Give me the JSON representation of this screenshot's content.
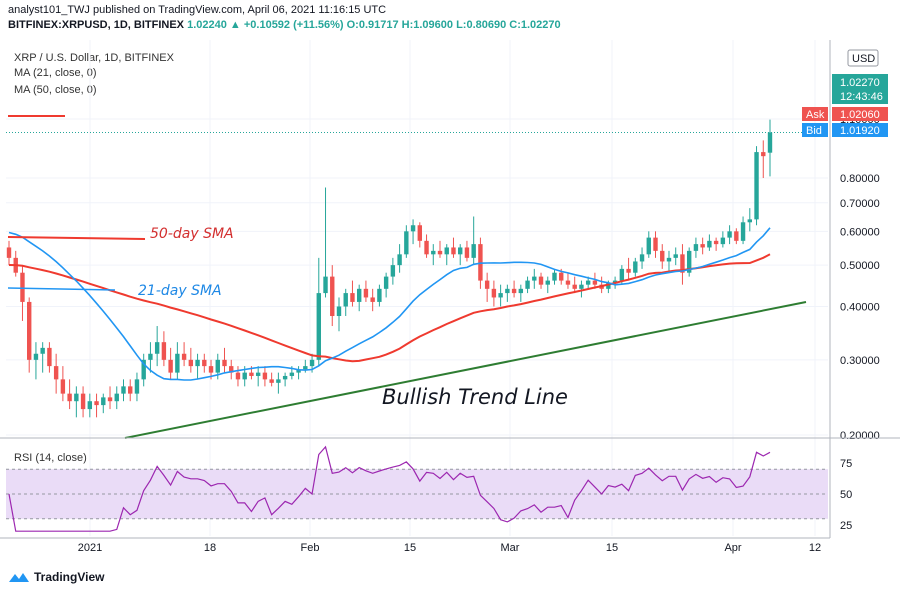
{
  "header": {
    "line1": "analyst101_TWJ published on TradingView.com, April 06, 2021 11:16:15 UTC",
    "symbol": "BITFINEX:XRPUSD, 1D, BITFINEX",
    "ohlc": "1.02240  ▲ +0.10592 (+11.56%) O:0.91717 H:1.09600 L:0.80690 C:1.02270"
  },
  "legend": {
    "title": "XRP / U.S. Dollar, 1D, BITFINEX",
    "ma21": "MA (21, close, 0)",
    "ma50": "MA (50, close, 0)",
    "rsi": "RSI (14, close)"
  },
  "price_tags": {
    "currency": "USD",
    "last": "1.02270",
    "countdown": "12:43:46",
    "ask_label": "Ask",
    "ask": "1.02060",
    "bid_label": "Bid",
    "bid": "1.01920"
  },
  "annotations": {
    "sma50": "50-day SMA",
    "sma21": "21-day SMA",
    "trend": "Bullish Trend Line"
  },
  "footer": {
    "brand": "TradingView"
  },
  "colors": {
    "up": "#26a69a",
    "down": "#ef5350",
    "ma21": "#2196f3",
    "ma50": "#ef3a2f",
    "trend": "#2e7d32",
    "rsi": "#9c27b0",
    "rsi_band": "#eadcf7"
  },
  "chart_data": {
    "type": "candlestick",
    "price_axis": {
      "ticks": [
        "0.20000",
        "0.30000",
        "0.40000",
        "0.50000",
        "0.60000",
        "0.70000",
        "0.80000",
        "1.10000"
      ],
      "scale": "log"
    },
    "rsi_axis": {
      "ticks": [
        "25",
        "50",
        "75"
      ],
      "band": [
        30,
        70
      ]
    },
    "x_ticks": [
      "2021",
      "18",
      "Feb",
      "15",
      "Mar",
      "15",
      "Apr",
      "12"
    ],
    "candles": [
      [
        0.55,
        0.57,
        0.5,
        0.52
      ],
      [
        0.52,
        0.54,
        0.47,
        0.48
      ],
      [
        0.48,
        0.5,
        0.37,
        0.41
      ],
      [
        0.41,
        0.42,
        0.28,
        0.3
      ],
      [
        0.3,
        0.33,
        0.27,
        0.31
      ],
      [
        0.31,
        0.33,
        0.28,
        0.32
      ],
      [
        0.32,
        0.33,
        0.28,
        0.29
      ],
      [
        0.29,
        0.31,
        0.25,
        0.27
      ],
      [
        0.27,
        0.29,
        0.24,
        0.25
      ],
      [
        0.25,
        0.27,
        0.23,
        0.24
      ],
      [
        0.24,
        0.26,
        0.22,
        0.25
      ],
      [
        0.25,
        0.26,
        0.22,
        0.23
      ],
      [
        0.23,
        0.25,
        0.22,
        0.24
      ],
      [
        0.24,
        0.25,
        0.22,
        0.235
      ],
      [
        0.235,
        0.25,
        0.225,
        0.245
      ],
      [
        0.245,
        0.26,
        0.23,
        0.24
      ],
      [
        0.24,
        0.26,
        0.23,
        0.25
      ],
      [
        0.25,
        0.27,
        0.24,
        0.26
      ],
      [
        0.26,
        0.27,
        0.24,
        0.25
      ],
      [
        0.25,
        0.28,
        0.24,
        0.27
      ],
      [
        0.27,
        0.31,
        0.26,
        0.3
      ],
      [
        0.3,
        0.33,
        0.28,
        0.31
      ],
      [
        0.31,
        0.36,
        0.29,
        0.33
      ],
      [
        0.33,
        0.35,
        0.29,
        0.3
      ],
      [
        0.3,
        0.32,
        0.27,
        0.28
      ],
      [
        0.28,
        0.33,
        0.27,
        0.31
      ],
      [
        0.31,
        0.33,
        0.29,
        0.3
      ],
      [
        0.3,
        0.32,
        0.28,
        0.29
      ],
      [
        0.29,
        0.31,
        0.27,
        0.3
      ],
      [
        0.3,
        0.31,
        0.28,
        0.29
      ],
      [
        0.29,
        0.3,
        0.27,
        0.28
      ],
      [
        0.28,
        0.31,
        0.27,
        0.3
      ],
      [
        0.3,
        0.32,
        0.28,
        0.29
      ],
      [
        0.29,
        0.3,
        0.27,
        0.28
      ],
      [
        0.28,
        0.29,
        0.26,
        0.27
      ],
      [
        0.27,
        0.29,
        0.26,
        0.28
      ],
      [
        0.28,
        0.29,
        0.27,
        0.275
      ],
      [
        0.275,
        0.29,
        0.26,
        0.28
      ],
      [
        0.28,
        0.29,
        0.26,
        0.27
      ],
      [
        0.27,
        0.28,
        0.26,
        0.265
      ],
      [
        0.265,
        0.28,
        0.25,
        0.27
      ],
      [
        0.27,
        0.28,
        0.26,
        0.275
      ],
      [
        0.275,
        0.29,
        0.27,
        0.28
      ],
      [
        0.28,
        0.29,
        0.27,
        0.285
      ],
      [
        0.285,
        0.3,
        0.28,
        0.29
      ],
      [
        0.29,
        0.31,
        0.28,
        0.3
      ],
      [
        0.3,
        0.52,
        0.29,
        0.43
      ],
      [
        0.43,
        0.76,
        0.42,
        0.47
      ],
      [
        0.47,
        0.5,
        0.36,
        0.38
      ],
      [
        0.38,
        0.42,
        0.35,
        0.4
      ],
      [
        0.4,
        0.44,
        0.38,
        0.43
      ],
      [
        0.43,
        0.46,
        0.4,
        0.41
      ],
      [
        0.41,
        0.45,
        0.39,
        0.44
      ],
      [
        0.44,
        0.46,
        0.41,
        0.42
      ],
      [
        0.42,
        0.44,
        0.39,
        0.41
      ],
      [
        0.41,
        0.45,
        0.4,
        0.44
      ],
      [
        0.44,
        0.48,
        0.42,
        0.47
      ],
      [
        0.47,
        0.52,
        0.45,
        0.5
      ],
      [
        0.5,
        0.56,
        0.48,
        0.53
      ],
      [
        0.53,
        0.62,
        0.52,
        0.6
      ],
      [
        0.6,
        0.64,
        0.56,
        0.62
      ],
      [
        0.62,
        0.63,
        0.55,
        0.57
      ],
      [
        0.57,
        0.59,
        0.52,
        0.53
      ],
      [
        0.53,
        0.56,
        0.5,
        0.54
      ],
      [
        0.54,
        0.57,
        0.52,
        0.53
      ],
      [
        0.53,
        0.56,
        0.5,
        0.55
      ],
      [
        0.55,
        0.58,
        0.52,
        0.53
      ],
      [
        0.53,
        0.56,
        0.5,
        0.55
      ],
      [
        0.55,
        0.57,
        0.51,
        0.52
      ],
      [
        0.52,
        0.65,
        0.5,
        0.56
      ],
      [
        0.56,
        0.58,
        0.44,
        0.46
      ],
      [
        0.46,
        0.48,
        0.41,
        0.44
      ],
      [
        0.44,
        0.46,
        0.4,
        0.42
      ],
      [
        0.42,
        0.45,
        0.4,
        0.43
      ],
      [
        0.43,
        0.45,
        0.41,
        0.44
      ],
      [
        0.44,
        0.46,
        0.42,
        0.43
      ],
      [
        0.43,
        0.45,
        0.41,
        0.44
      ],
      [
        0.44,
        0.47,
        0.43,
        0.46
      ],
      [
        0.46,
        0.49,
        0.44,
        0.47
      ],
      [
        0.47,
        0.48,
        0.44,
        0.45
      ],
      [
        0.45,
        0.47,
        0.43,
        0.46
      ],
      [
        0.46,
        0.49,
        0.45,
        0.48
      ],
      [
        0.48,
        0.49,
        0.45,
        0.46
      ],
      [
        0.46,
        0.48,
        0.44,
        0.45
      ],
      [
        0.45,
        0.47,
        0.43,
        0.44
      ],
      [
        0.44,
        0.46,
        0.42,
        0.45
      ],
      [
        0.45,
        0.47,
        0.44,
        0.46
      ],
      [
        0.46,
        0.48,
        0.44,
        0.45
      ],
      [
        0.45,
        0.47,
        0.43,
        0.44
      ],
      [
        0.44,
        0.46,
        0.43,
        0.455
      ],
      [
        0.455,
        0.47,
        0.44,
        0.46
      ],
      [
        0.46,
        0.5,
        0.45,
        0.49
      ],
      [
        0.49,
        0.52,
        0.46,
        0.48
      ],
      [
        0.48,
        0.52,
        0.47,
        0.51
      ],
      [
        0.51,
        0.55,
        0.49,
        0.53
      ],
      [
        0.53,
        0.6,
        0.52,
        0.58
      ],
      [
        0.58,
        0.6,
        0.52,
        0.54
      ],
      [
        0.54,
        0.56,
        0.49,
        0.51
      ],
      [
        0.51,
        0.54,
        0.48,
        0.52
      ],
      [
        0.52,
        0.55,
        0.5,
        0.53
      ],
      [
        0.53,
        0.56,
        0.45,
        0.48
      ],
      [
        0.48,
        0.55,
        0.47,
        0.54
      ],
      [
        0.54,
        0.58,
        0.52,
        0.56
      ],
      [
        0.56,
        0.58,
        0.53,
        0.55
      ],
      [
        0.55,
        0.59,
        0.54,
        0.57
      ],
      [
        0.57,
        0.58,
        0.54,
        0.56
      ],
      [
        0.56,
        0.6,
        0.55,
        0.58
      ],
      [
        0.58,
        0.62,
        0.56,
        0.6
      ],
      [
        0.6,
        0.61,
        0.56,
        0.57
      ],
      [
        0.57,
        0.65,
        0.56,
        0.63
      ],
      [
        0.63,
        0.68,
        0.6,
        0.64
      ],
      [
        0.64,
        0.95,
        0.62,
        0.92
      ],
      [
        0.92,
        0.98,
        0.8,
        0.9
      ],
      [
        0.917,
        1.096,
        0.807,
        1.0227
      ]
    ]
  }
}
